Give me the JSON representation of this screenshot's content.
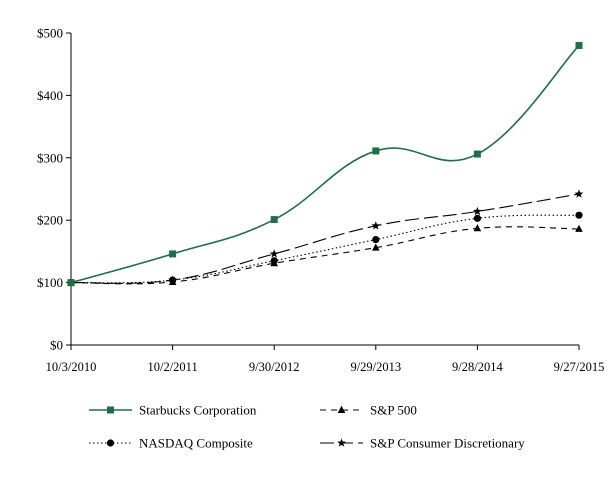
{
  "chart_data": {
    "type": "line",
    "title": "",
    "xlabel": "",
    "ylabel": "",
    "categories": [
      "10/3/2010",
      "10/2/2011",
      "9/30/2012",
      "9/29/2013",
      "9/28/2014",
      "9/27/2015"
    ],
    "y_ticks": [
      "$0",
      "$100",
      "$200",
      "$300",
      "$400",
      "$500"
    ],
    "ylim": [
      0,
      500
    ],
    "grid": false,
    "legend_position": "bottom",
    "series": [
      {
        "key": "sbux",
        "name": "Starbucks Corporation",
        "values": [
          100,
          146,
          201,
          311,
          306,
          480
        ],
        "color": "#1e6f45",
        "dash": "",
        "marker": "square"
      },
      {
        "key": "nasdaq",
        "name": "NASDAQ Composite",
        "values": [
          100,
          104,
          135,
          169,
          203,
          208
        ],
        "color": "#000000",
        "dash": "1.5 2.5",
        "marker": "circle"
      },
      {
        "key": "sp500",
        "name": "S&P 500",
        "values": [
          100,
          101,
          131,
          156,
          187,
          186
        ],
        "color": "#000000",
        "dash": "6 5",
        "marker": "triangle"
      },
      {
        "key": "spcd",
        "name": "S&P Consumer Discretionary",
        "values": [
          100,
          104,
          146,
          191,
          214,
          242
        ],
        "color": "#000000",
        "dash": "14 5",
        "marker": "star"
      }
    ]
  }
}
